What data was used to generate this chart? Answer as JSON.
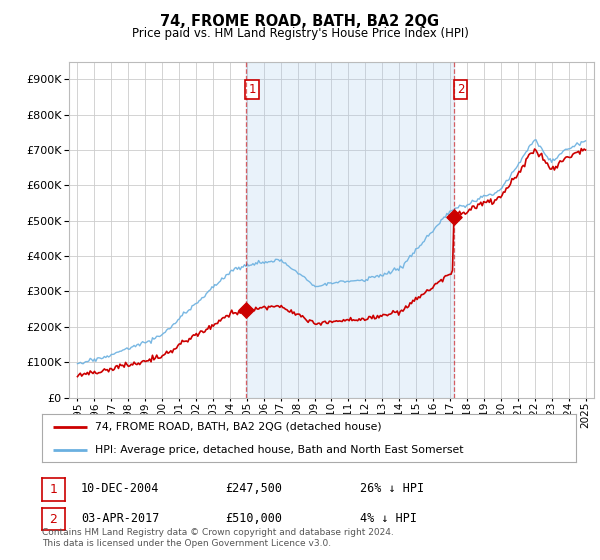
{
  "title": "74, FROME ROAD, BATH, BA2 2QG",
  "subtitle": "Price paid vs. HM Land Registry's House Price Index (HPI)",
  "footer": "Contains HM Land Registry data © Crown copyright and database right 2024.\nThis data is licensed under the Open Government Licence v3.0.",
  "legend_line1": "74, FROME ROAD, BATH, BA2 2QG (detached house)",
  "legend_line2": "HPI: Average price, detached house, Bath and North East Somerset",
  "purchase1_date": "10-DEC-2004",
  "purchase1_price": 247500,
  "purchase1_label": "26% ↓ HPI",
  "purchase2_date": "03-APR-2017",
  "purchase2_price": 510000,
  "purchase2_label": "4% ↓ HPI",
  "sale_color": "#cc0000",
  "hpi_color": "#6ab0e0",
  "shade_color": "#ddeeff",
  "vline_color": "#cc0000",
  "bg_color": "#ffffff",
  "plot_bg_color": "#ffffff",
  "grid_color": "#cccccc",
  "ylim": [
    0,
    950000
  ],
  "yticks": [
    0,
    100000,
    200000,
    300000,
    400000,
    500000,
    600000,
    700000,
    800000,
    900000
  ],
  "purchase1_x": 2004.94,
  "purchase2_x": 2017.25,
  "xlim_left": 1994.5,
  "xlim_right": 2025.5
}
